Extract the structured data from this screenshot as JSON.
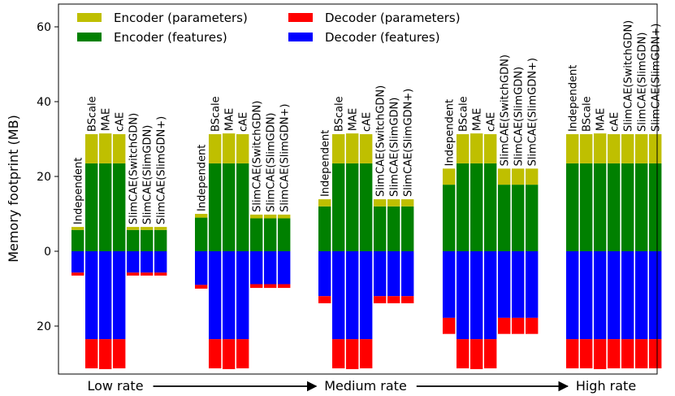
{
  "chart_data": {
    "type": "bar",
    "ylabel": "Memory footprint (MB)",
    "ylim": [
      -32.5,
      66
    ],
    "yticks": [
      60,
      40,
      20,
      0,
      -20
    ],
    "ytick_labels": [
      "60",
      "40",
      "20",
      "0",
      "20"
    ],
    "legend": {
      "placement": "top-left",
      "entries": [
        {
          "name": "Encoder (parameters)",
          "color": "#bfbf00"
        },
        {
          "name": "Encoder (features)",
          "color": "#008000"
        },
        {
          "name": "Decoder (parameters)",
          "color": "#ff0000"
        },
        {
          "name": "Decoder (features)",
          "color": "#0000ff"
        }
      ]
    },
    "groups": [
      {
        "name": "Low rate",
        "bars": [
          {
            "label": "Independent",
            "enc_feat": 5.7,
            "enc_param": 0.8,
            "dec_feat": 5.7,
            "dec_param": 0.8
          },
          {
            "label": "BScale",
            "enc_feat": 23.5,
            "enc_param": 7.8,
            "dec_feat": 23.5,
            "dec_param": 7.8
          },
          {
            "label": "MAE",
            "enc_feat": 23.5,
            "enc_param": 8.0,
            "dec_feat": 23.5,
            "dec_param": 8.0
          },
          {
            "label": "cAE",
            "enc_feat": 23.5,
            "enc_param": 7.8,
            "dec_feat": 23.5,
            "dec_param": 7.8
          },
          {
            "label": "SlimCAE(SwitchGDN)",
            "enc_feat": 5.7,
            "enc_param": 0.8,
            "dec_feat": 5.7,
            "dec_param": 0.8
          },
          {
            "label": "SlimCAE(SlimGDN)",
            "enc_feat": 5.7,
            "enc_param": 0.8,
            "dec_feat": 5.7,
            "dec_param": 0.8
          },
          {
            "label": "SlimCAE(SlimGDN+)",
            "enc_feat": 5.7,
            "enc_param": 0.8,
            "dec_feat": 5.7,
            "dec_param": 0.8
          }
        ]
      },
      {
        "name": "",
        "bars": [
          {
            "label": "Independent",
            "enc_feat": 9.0,
            "enc_param": 1.0,
            "dec_feat": 9.0,
            "dec_param": 1.0
          },
          {
            "label": "BScale",
            "enc_feat": 23.5,
            "enc_param": 7.8,
            "dec_feat": 23.5,
            "dec_param": 7.8
          },
          {
            "label": "MAE",
            "enc_feat": 23.5,
            "enc_param": 8.0,
            "dec_feat": 23.5,
            "dec_param": 8.0
          },
          {
            "label": "cAE",
            "enc_feat": 23.5,
            "enc_param": 7.8,
            "dec_feat": 23.5,
            "dec_param": 7.8
          },
          {
            "label": "SlimCAE(SwitchGDN)",
            "enc_feat": 8.8,
            "enc_param": 1.0,
            "dec_feat": 8.8,
            "dec_param": 1.0
          },
          {
            "label": "SlimCAE(SlimGDN)",
            "enc_feat": 8.8,
            "enc_param": 1.0,
            "dec_feat": 8.8,
            "dec_param": 1.0
          },
          {
            "label": "SlimCAE(SlimGDN+)",
            "enc_feat": 8.8,
            "enc_param": 1.0,
            "dec_feat": 8.8,
            "dec_param": 1.0
          }
        ]
      },
      {
        "name": "Medium rate",
        "bars": [
          {
            "label": "Independent",
            "enc_feat": 12.0,
            "enc_param": 1.9,
            "dec_feat": 12.0,
            "dec_param": 1.9
          },
          {
            "label": "BScale",
            "enc_feat": 23.5,
            "enc_param": 7.8,
            "dec_feat": 23.5,
            "dec_param": 7.8
          },
          {
            "label": "MAE",
            "enc_feat": 23.5,
            "enc_param": 8.0,
            "dec_feat": 23.5,
            "dec_param": 8.0
          },
          {
            "label": "cAE",
            "enc_feat": 23.5,
            "enc_param": 7.8,
            "dec_feat": 23.5,
            "dec_param": 7.8
          },
          {
            "label": "SlimCAE(SwitchGDN)",
            "enc_feat": 12.0,
            "enc_param": 1.9,
            "dec_feat": 12.0,
            "dec_param": 1.9
          },
          {
            "label": "SlimCAE(SlimGDN)",
            "enc_feat": 12.0,
            "enc_param": 1.9,
            "dec_feat": 12.0,
            "dec_param": 1.9
          },
          {
            "label": "SlimCAE(SlimGDN+)",
            "enc_feat": 12.0,
            "enc_param": 1.9,
            "dec_feat": 12.0,
            "dec_param": 1.9
          }
        ]
      },
      {
        "name": "",
        "bars": [
          {
            "label": "Independent",
            "enc_feat": 17.8,
            "enc_param": 4.3,
            "dec_feat": 17.8,
            "dec_param": 4.3
          },
          {
            "label": "BScale",
            "enc_feat": 23.5,
            "enc_param": 7.8,
            "dec_feat": 23.5,
            "dec_param": 7.8
          },
          {
            "label": "MAE",
            "enc_feat": 23.5,
            "enc_param": 8.0,
            "dec_feat": 23.5,
            "dec_param": 8.0
          },
          {
            "label": "cAE",
            "enc_feat": 23.5,
            "enc_param": 7.8,
            "dec_feat": 23.5,
            "dec_param": 7.8
          },
          {
            "label": "SlimCAE(SwitchGDN)",
            "enc_feat": 17.8,
            "enc_param": 4.3,
            "dec_feat": 17.8,
            "dec_param": 4.3
          },
          {
            "label": "SlimCAE(SlimGDN)",
            "enc_feat": 17.8,
            "enc_param": 4.3,
            "dec_feat": 17.8,
            "dec_param": 4.3
          },
          {
            "label": "SlimCAE(SlimGDN+)",
            "enc_feat": 17.8,
            "enc_param": 4.3,
            "dec_feat": 17.8,
            "dec_param": 4.3
          }
        ]
      },
      {
        "name": "High rate",
        "bars": [
          {
            "label": "Independent",
            "enc_feat": 23.5,
            "enc_param": 7.8,
            "dec_feat": 23.5,
            "dec_param": 7.8
          },
          {
            "label": "BScale",
            "enc_feat": 23.5,
            "enc_param": 7.8,
            "dec_feat": 23.5,
            "dec_param": 7.8
          },
          {
            "label": "MAE",
            "enc_feat": 23.5,
            "enc_param": 8.0,
            "dec_feat": 23.5,
            "dec_param": 8.0
          },
          {
            "label": "cAE",
            "enc_feat": 23.5,
            "enc_param": 7.8,
            "dec_feat": 23.5,
            "dec_param": 7.8
          },
          {
            "label": "SlimCAE(SwitchGDN)",
            "enc_feat": 23.5,
            "enc_param": 7.8,
            "dec_feat": 23.5,
            "dec_param": 7.8
          },
          {
            "label": "SlimCAE(SlimGDN)",
            "enc_feat": 23.5,
            "enc_param": 7.8,
            "dec_feat": 23.5,
            "dec_param": 7.8
          },
          {
            "label": "SlimCAE(SlimGDN+)",
            "enc_feat": 23.5,
            "enc_param": 7.8,
            "dec_feat": 23.5,
            "dec_param": 7.8
          }
        ]
      }
    ]
  }
}
